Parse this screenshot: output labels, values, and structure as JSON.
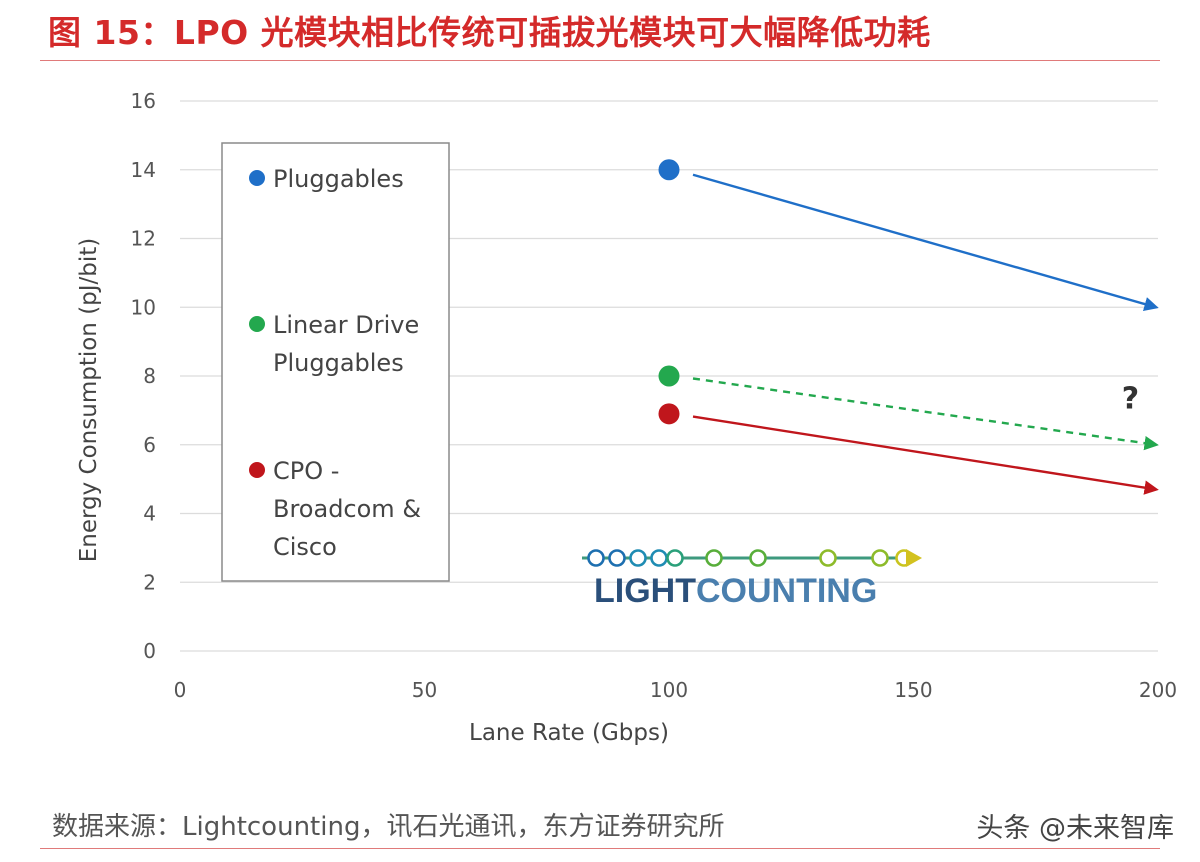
{
  "header": {
    "title": "图 15：LPO 光模块相比传统可插拔光模块可大幅降低功耗"
  },
  "footer": {
    "source": "数据来源：Lightcounting，讯石光通讯，东方证券研究所",
    "watermark": "头条 @未来智库"
  },
  "chart_data": {
    "type": "scatter",
    "xlabel": "Lane Rate (Gbps)",
    "ylabel": "Energy Consumption (pJ/bit)",
    "xlim": [
      0,
      200
    ],
    "ylim": [
      0,
      16
    ],
    "xticks": [
      0,
      50,
      100,
      150,
      200
    ],
    "yticks": [
      0,
      2,
      4,
      6,
      8,
      10,
      12,
      14,
      16
    ],
    "grid": "horizontal",
    "legend_position": "left",
    "series": [
      {
        "name": "Pluggables",
        "color": "#1f6fc8",
        "point": {
          "x": 100,
          "y": 14
        },
        "projection": {
          "x": 200,
          "y": 10
        },
        "projection_style": "solid"
      },
      {
        "name": "Linear Drive Pluggables",
        "color": "#23a84e",
        "point": {
          "x": 100,
          "y": 8
        },
        "projection": {
          "x": 200,
          "y": 6
        },
        "projection_style": "dashed"
      },
      {
        "name": "CPO - Broadcom & Cisco",
        "color": "#c0161c",
        "point": {
          "x": 100,
          "y": 6.9
        },
        "projection": {
          "x": 200,
          "y": 4.7
        },
        "projection_style": "solid"
      }
    ],
    "legend_lines": [
      [
        "Pluggables"
      ],
      [
        "Linear Drive",
        "Pluggables"
      ],
      [
        "CPO -",
        "Broadcom &",
        "Cisco"
      ]
    ],
    "annotations": [
      {
        "text": "?",
        "x": 196,
        "y": 7
      }
    ],
    "logo": {
      "part1": "LIGHT",
      "part2": "COUNTING"
    }
  }
}
